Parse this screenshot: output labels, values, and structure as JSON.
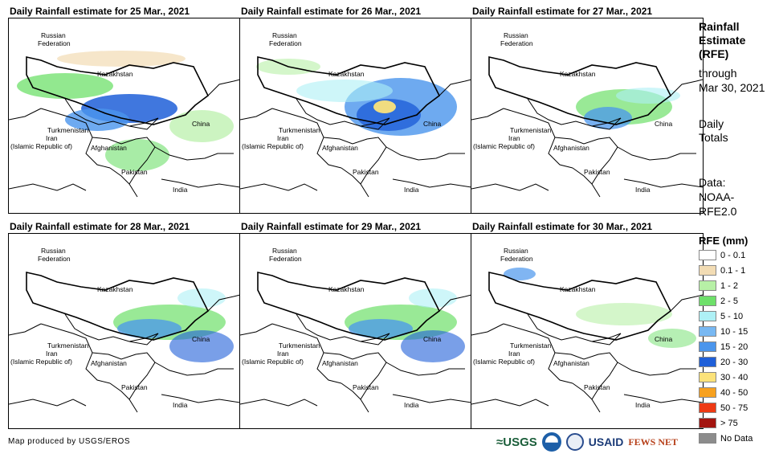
{
  "panels": [
    {
      "title": "Daily Rainfall estimate for 25 Mar., 2021",
      "rain_level": "heavy-west"
    },
    {
      "title": "Daily Rainfall estimate for 26 Mar., 2021",
      "rain_level": "heavy-east"
    },
    {
      "title": "Daily Rainfall estimate for 27 Mar., 2021",
      "rain_level": "moderate"
    },
    {
      "title": "Daily Rainfall estimate for 28 Mar., 2021",
      "rain_level": "moderate-east"
    },
    {
      "title": "Daily Rainfall estimate for 29 Mar., 2021",
      "rain_level": "moderate-east"
    },
    {
      "title": "Daily Rainfall estimate for 30 Mar., 2021",
      "rain_level": "light"
    }
  ],
  "map_labels": {
    "russia": "Russian Federation",
    "russia_line1": "Russian",
    "russia_line2": "Federation",
    "kazakhstan": "Kazakhstan",
    "turkmenistan": "Turkmenistan",
    "iran_line1": "Iran",
    "iran_line2": "(Islamic Republic of)",
    "afghanistan": "Afghanistan",
    "pakistan": "Pakistan",
    "china": "China",
    "india": "India"
  },
  "sidebar": {
    "title_line1": "Rainfall",
    "title_line2": "Estimate",
    "title_line3": "(RFE)",
    "through_line1": "through",
    "through_line2": "Mar 30, 2021",
    "totals_line1": "Daily",
    "totals_line2": "Totals",
    "data_line1": "Data:",
    "data_line2": "NOAA-",
    "data_line3": "RFE2.0"
  },
  "legend": {
    "title": "RFE (mm)",
    "items": [
      {
        "label": "0 - 0.1",
        "color": "#ffffff"
      },
      {
        "label": "0.1 - 1",
        "color": "#f2dcb4"
      },
      {
        "label": "1 - 2",
        "color": "#b7f0a6"
      },
      {
        "label": "2 - 5",
        "color": "#6ee06a"
      },
      {
        "label": "5 - 10",
        "color": "#aef0f5"
      },
      {
        "label": "10 - 15",
        "color": "#78b8f2"
      },
      {
        "label": "15 - 20",
        "color": "#4a95ec"
      },
      {
        "label": "20 - 30",
        "color": "#1f5fd8"
      },
      {
        "label": "30 - 40",
        "color": "#fbe27a"
      },
      {
        "label": "40 - 50",
        "color": "#f7a11f"
      },
      {
        "label": "50 - 75",
        "color": "#ee3a14"
      },
      {
        "label": "> 75",
        "color": "#a3140f"
      },
      {
        "label": "No Data",
        "color": "#8c8c8c"
      }
    ]
  },
  "credit": "Map produced by USGS/EROS",
  "logos": {
    "usgs": "≈USGS",
    "usaid": "USAID",
    "fews": "FEWS NET"
  }
}
